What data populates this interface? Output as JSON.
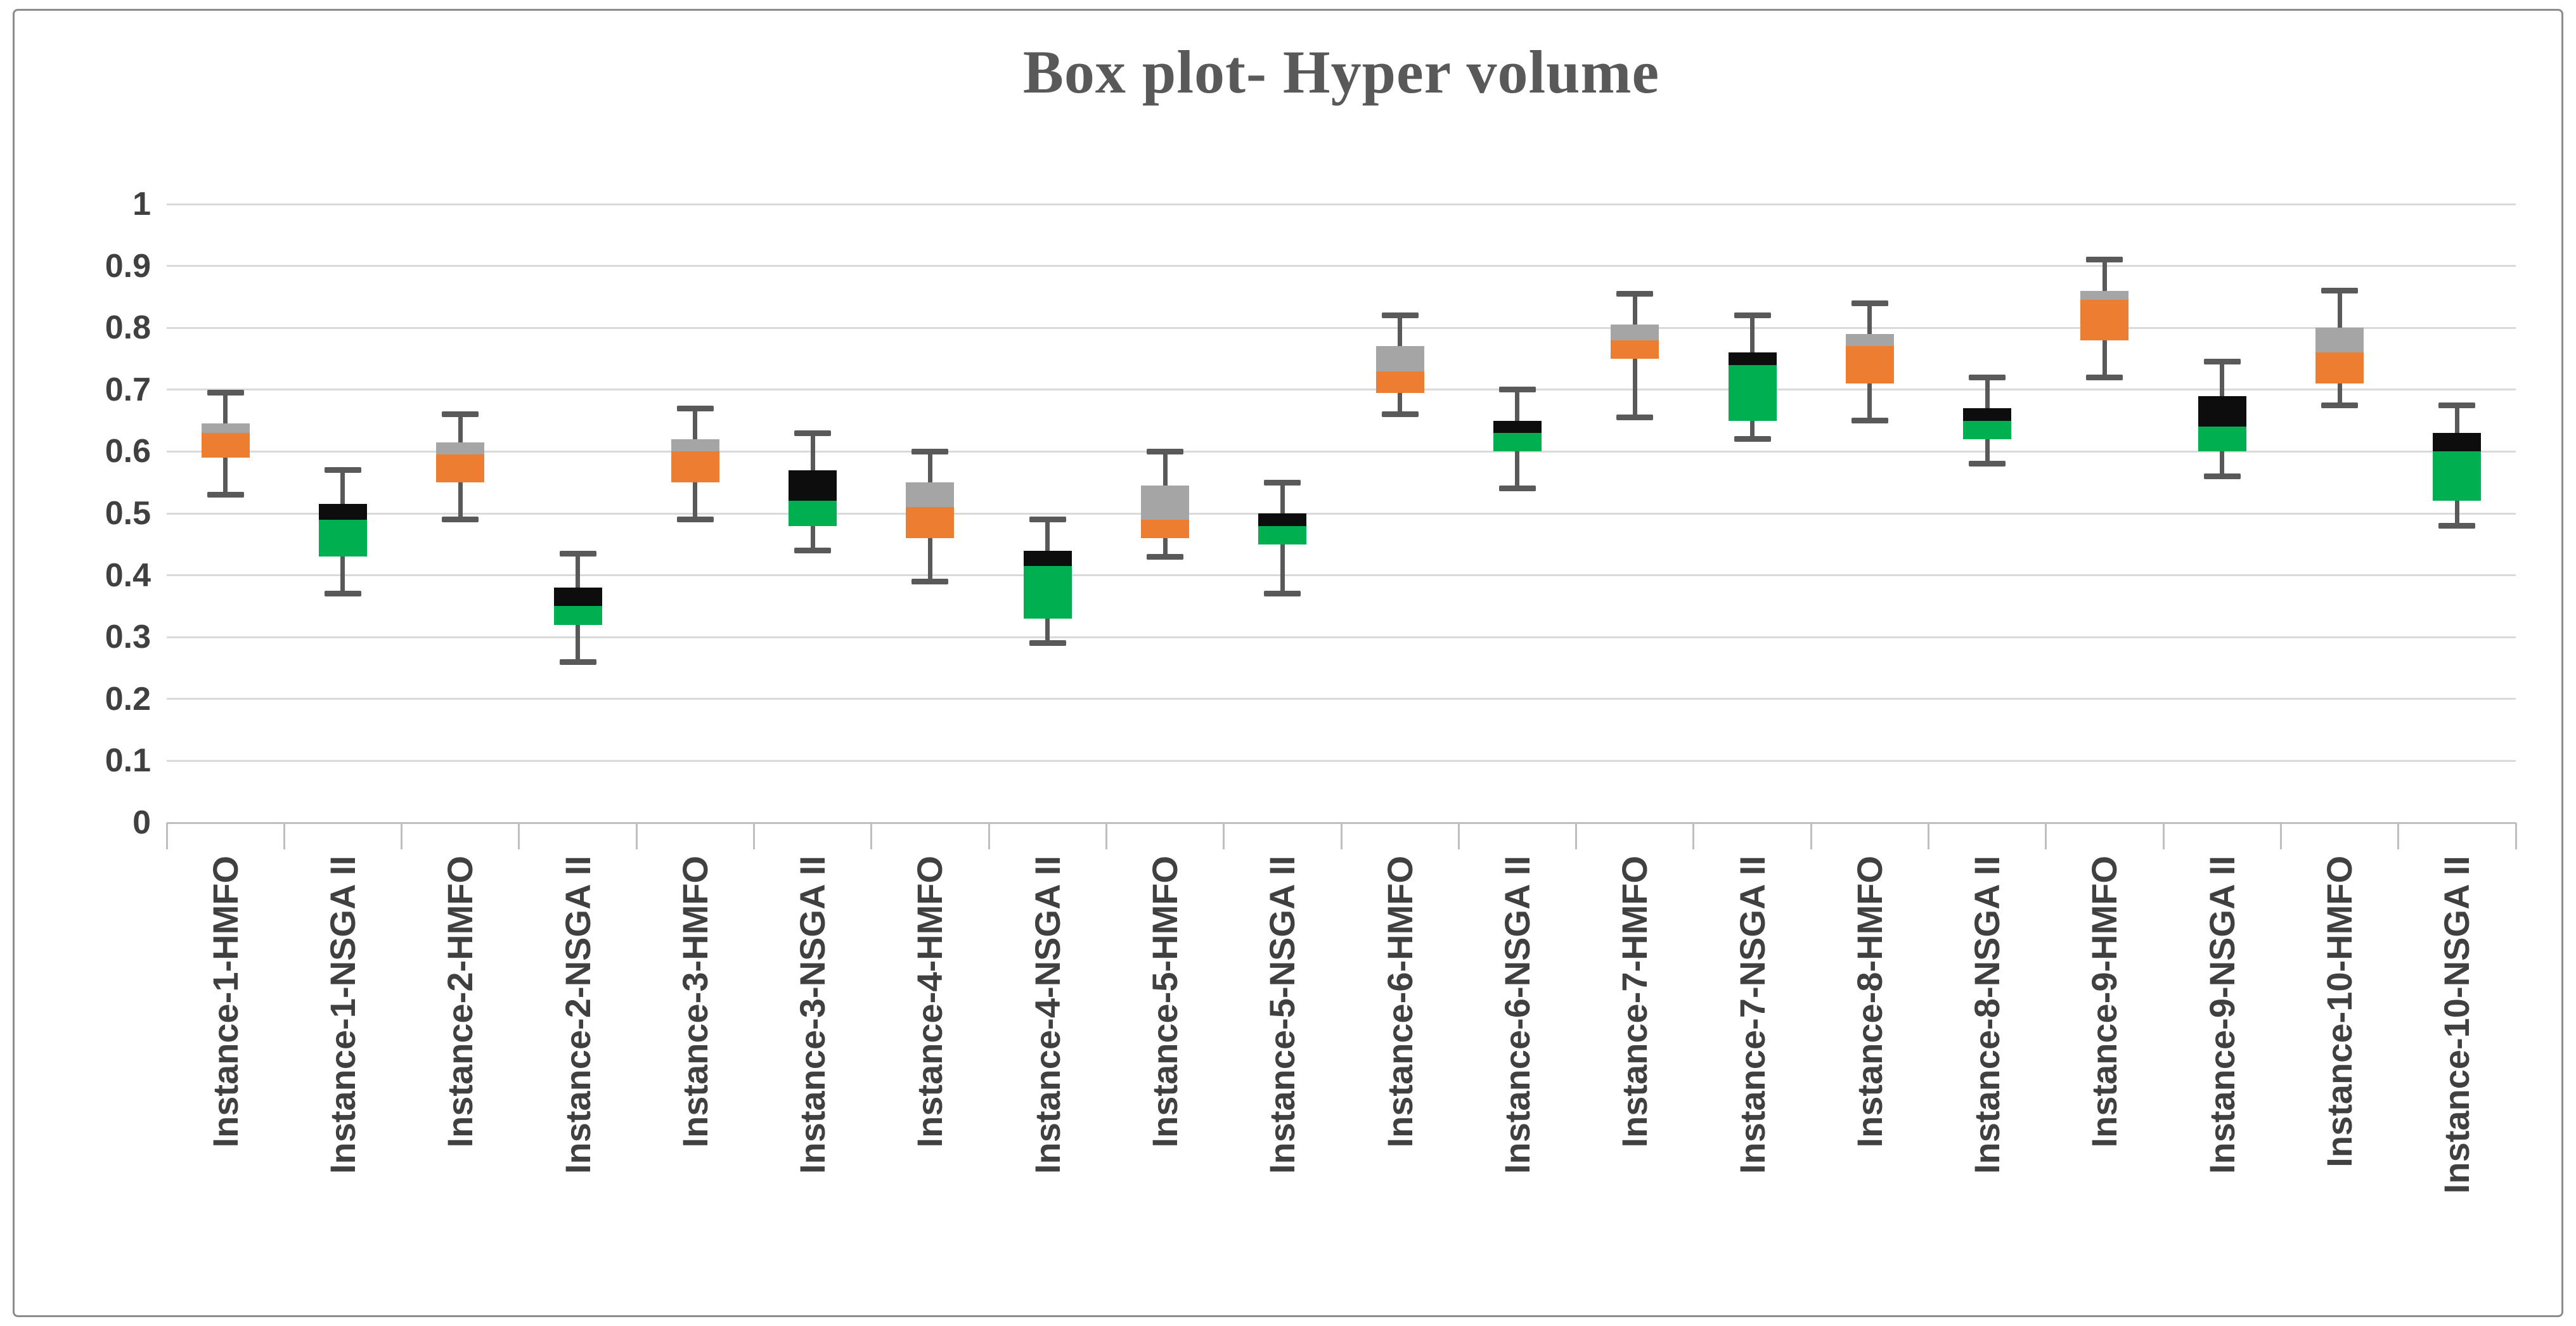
{
  "title": "Box plot- Hyper volume",
  "colors": {
    "title_text": "#595959",
    "axis_text": "#404040",
    "gridline": "#d9d9d9",
    "axis_line": "#bfbfbf",
    "whisker": "#595959",
    "frame_border": "#8c8c8c",
    "hmfo_lower_box": "#ed7d31",
    "hmfo_upper_box": "#a5a5a5",
    "nsga_lower_box": "#00b050",
    "nsga_upper_box": "#0d0d0d",
    "background": "#ffffff"
  },
  "chart_data": {
    "type": "box",
    "title": "Box plot- Hyper volume",
    "xlabel": "",
    "ylabel": "",
    "ylim": [
      0,
      1
    ],
    "grid": true,
    "legend": false,
    "y_ticks": [
      {
        "label": "1",
        "value": 1.0
      },
      {
        "label": "0.9",
        "value": 0.9
      },
      {
        "label": "0.8",
        "value": 0.8
      },
      {
        "label": "0.7",
        "value": 0.7
      },
      {
        "label": "0.6",
        "value": 0.6
      },
      {
        "label": "0.5",
        "value": 0.5
      },
      {
        "label": "0.4",
        "value": 0.4
      },
      {
        "label": "0.3",
        "value": 0.3
      },
      {
        "label": "0.2",
        "value": 0.2
      },
      {
        "label": "0.1",
        "value": 0.1
      },
      {
        "label": "0",
        "value": 0.0
      }
    ],
    "series_styles": {
      "HMFO": {
        "lower_color": "#ed7d31",
        "upper_color": "#a5a5a5"
      },
      "NSGA II": {
        "lower_color": "#00b050",
        "upper_color": "#0d0d0d"
      }
    },
    "boxes": [
      {
        "label": "Instance-1-HMFO",
        "algorithm": "HMFO",
        "low": 0.53,
        "q1": 0.59,
        "median": 0.63,
        "q3": 0.645,
        "high": 0.695
      },
      {
        "label": "Instance-1-NSGA II",
        "algorithm": "NSGA II",
        "low": 0.37,
        "q1": 0.43,
        "median": 0.49,
        "q3": 0.515,
        "high": 0.57
      },
      {
        "label": "Instance-2-HMFO",
        "algorithm": "HMFO",
        "low": 0.49,
        "q1": 0.55,
        "median": 0.595,
        "q3": 0.615,
        "high": 0.66
      },
      {
        "label": "Instance-2-NSGA II",
        "algorithm": "NSGA II",
        "low": 0.26,
        "q1": 0.32,
        "median": 0.35,
        "q3": 0.38,
        "high": 0.435
      },
      {
        "label": "Instance-3-HMFO",
        "algorithm": "HMFO",
        "low": 0.49,
        "q1": 0.55,
        "median": 0.6,
        "q3": 0.62,
        "high": 0.67
      },
      {
        "label": "Instance-3-NSGA II",
        "algorithm": "NSGA II",
        "low": 0.44,
        "q1": 0.48,
        "median": 0.52,
        "q3": 0.57,
        "high": 0.63
      },
      {
        "label": "Instance-4-HMFO",
        "algorithm": "HMFO",
        "low": 0.39,
        "q1": 0.46,
        "median": 0.51,
        "q3": 0.55,
        "high": 0.6
      },
      {
        "label": "Instance-4-NSGA II",
        "algorithm": "NSGA II",
        "low": 0.29,
        "q1": 0.33,
        "median": 0.415,
        "q3": 0.44,
        "high": 0.49
      },
      {
        "label": "Instance-5-HMFO",
        "algorithm": "HMFO",
        "low": 0.43,
        "q1": 0.46,
        "median": 0.49,
        "q3": 0.545,
        "high": 0.6
      },
      {
        "label": "Instance-5-NSGA II",
        "algorithm": "NSGA II",
        "low": 0.37,
        "q1": 0.45,
        "median": 0.48,
        "q3": 0.5,
        "high": 0.55
      },
      {
        "label": "Instance-6-HMFO",
        "algorithm": "HMFO",
        "low": 0.66,
        "q1": 0.695,
        "median": 0.73,
        "q3": 0.77,
        "high": 0.82
      },
      {
        "label": "Instance-6-NSGA II",
        "algorithm": "NSGA II",
        "low": 0.54,
        "q1": 0.6,
        "median": 0.63,
        "q3": 0.65,
        "high": 0.7
      },
      {
        "label": "Instance-7-HMFO",
        "algorithm": "HMFO",
        "low": 0.655,
        "q1": 0.75,
        "median": 0.78,
        "q3": 0.805,
        "high": 0.855
      },
      {
        "label": "Instance-7-NSGA II",
        "algorithm": "NSGA II",
        "low": 0.62,
        "q1": 0.65,
        "median": 0.74,
        "q3": 0.76,
        "high": 0.82
      },
      {
        "label": "Instance-8-HMFO",
        "algorithm": "HMFO",
        "low": 0.65,
        "q1": 0.71,
        "median": 0.77,
        "q3": 0.79,
        "high": 0.84
      },
      {
        "label": "Instance-8-NSGA II",
        "algorithm": "NSGA II",
        "low": 0.58,
        "q1": 0.62,
        "median": 0.65,
        "q3": 0.67,
        "high": 0.72
      },
      {
        "label": "Instance-9-HMFO",
        "algorithm": "HMFO",
        "low": 0.72,
        "q1": 0.78,
        "median": 0.845,
        "q3": 0.86,
        "high": 0.91
      },
      {
        "label": "Instance-9-NSGA II",
        "algorithm": "NSGA II",
        "low": 0.56,
        "q1": 0.6,
        "median": 0.64,
        "q3": 0.69,
        "high": 0.745
      },
      {
        "label": "Instance-10-HMFO",
        "algorithm": "HMFO",
        "low": 0.675,
        "q1": 0.71,
        "median": 0.76,
        "q3": 0.8,
        "high": 0.86
      },
      {
        "label": "Instance-10-NSGA II",
        "algorithm": "NSGA II",
        "low": 0.48,
        "q1": 0.52,
        "median": 0.6,
        "q3": 0.63,
        "high": 0.675
      }
    ]
  }
}
